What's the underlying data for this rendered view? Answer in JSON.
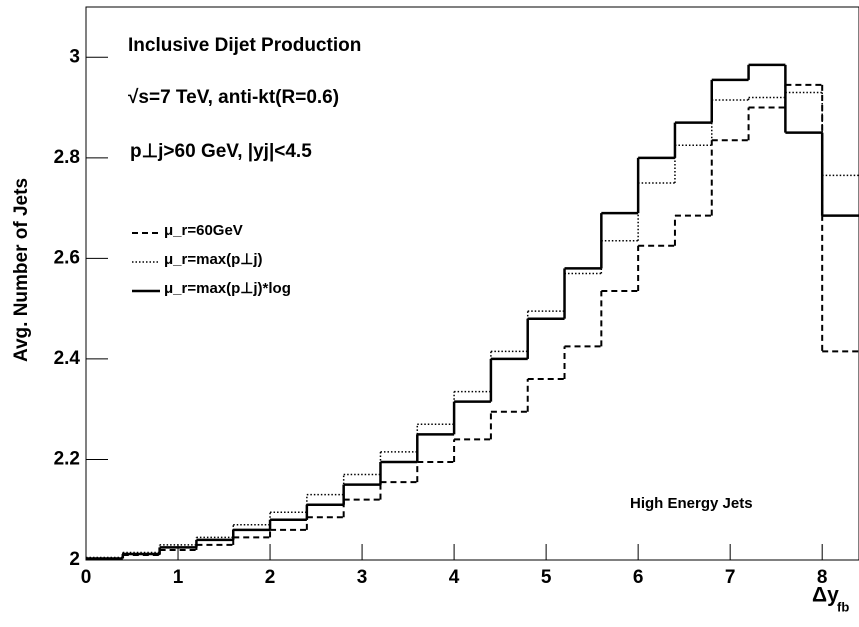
{
  "chart_data": {
    "type": "histogram",
    "y_label": "Avg. Number of Jets",
    "x_label": "Δy",
    "x_label_sub": "fb",
    "annotations": [
      "Inclusive Dijet Production",
      "√s=7 TeV, anti-kt(R=0.6)",
      "p⊥j>60 GeV, |yj|<4.5",
      "High Energy Jets"
    ],
    "bins": [
      0,
      0.4,
      0.8,
      1.2,
      1.6,
      2.0,
      2.4,
      2.8,
      3.2,
      3.6,
      4.0,
      4.4,
      4.8,
      5.2,
      5.6,
      6.0,
      6.4,
      6.8,
      7.2,
      7.6,
      8.0,
      8.4
    ],
    "series": [
      {
        "name": "μ_r=60GeV",
        "color": "#000000",
        "style": "dashed",
        "values": [
          2.003,
          2.01,
          2.02,
          2.03,
          2.045,
          2.06,
          2.085,
          2.12,
          2.155,
          2.195,
          2.24,
          2.295,
          2.36,
          2.425,
          2.535,
          2.625,
          2.685,
          2.835,
          2.9,
          2.945,
          2.415
        ]
      },
      {
        "name": "μ_r=max(p⊥j)",
        "color": "#000000",
        "style": "dotted",
        "values": [
          2.005,
          2.015,
          2.03,
          2.045,
          2.07,
          2.095,
          2.13,
          2.17,
          2.215,
          2.27,
          2.335,
          2.415,
          2.495,
          2.57,
          2.635,
          2.75,
          2.825,
          2.915,
          2.92,
          2.93,
          2.765
        ]
      },
      {
        "name": "μ_r=max(p⊥j)*log",
        "color": "#000000",
        "style": "solid",
        "values": [
          2.003,
          2.012,
          2.025,
          2.04,
          2.06,
          2.08,
          2.11,
          2.15,
          2.195,
          2.25,
          2.315,
          2.4,
          2.48,
          2.58,
          2.69,
          2.8,
          2.87,
          2.955,
          2.985,
          2.85,
          2.685
        ]
      }
    ],
    "xlim": [
      0,
      8.4
    ],
    "xticks": [
      0,
      1,
      2,
      3,
      4,
      5,
      6,
      7,
      8
    ],
    "ylim": [
      2,
      3.1
    ],
    "yticks": [
      2,
      2.2,
      2.4,
      2.6,
      2.8,
      3
    ]
  }
}
